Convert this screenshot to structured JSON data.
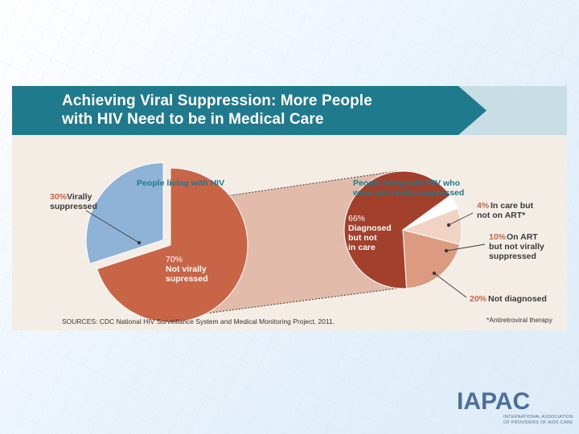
{
  "slide": {
    "logo": {
      "wordmark": "IAPAC",
      "subtitle_lines": [
        "INTERNATIONAL ASSOCIATION",
        "OF PROVIDERS OF AIDS CARE"
      ]
    }
  },
  "colors": {
    "teal_banner": "#1e7a8c",
    "not_suppressed": "#c96547",
    "suppressed": "#8fb3d6",
    "diagnosed_not_in_care": "#a3402b",
    "in_care_not_on_art": "#ffffff",
    "on_art_not_suppressed": "#f0d3c2",
    "not_diagnosed": "#dc9b80",
    "accent_text": "#c96547",
    "callout_background": "#dca996"
  },
  "chart_data": [
    {
      "type": "pie",
      "title_lines": [
        "Achieving Viral Suppression: More People",
        "with HIV Need to be in Medical Care"
      ],
      "subtitle": "People living with HIV",
      "slices": [
        {
          "pct": "30%",
          "label_lines": [
            "Virally",
            "suppressed"
          ],
          "value": 30,
          "exploded": true
        },
        {
          "pct": "70%",
          "label_lines": [
            "Not virally",
            "supressed"
          ],
          "value": 70
        }
      ],
      "source": "SOURCES: CDC National HIV Surveillance System and Medical Monitoring Project, 2011."
    },
    {
      "type": "pie",
      "subtitle_lines": [
        "People living with HIV who",
        "were not virally suppressed"
      ],
      "slices": [
        {
          "pct": "66%",
          "label_lines": [
            "Diagnosed",
            "but not",
            "in care"
          ],
          "value": 66
        },
        {
          "pct": "4%",
          "label_lines": [
            "In care but",
            "not on ART*"
          ],
          "value": 4
        },
        {
          "pct": "10%",
          "label_lines": [
            "On ART",
            "but not virally",
            "suppressed"
          ],
          "value": 10
        },
        {
          "pct": "20%",
          "label_lines": [
            "Not diagnosed"
          ],
          "value": 20
        }
      ],
      "footnote": "*Antiretroviral therapy"
    }
  ]
}
